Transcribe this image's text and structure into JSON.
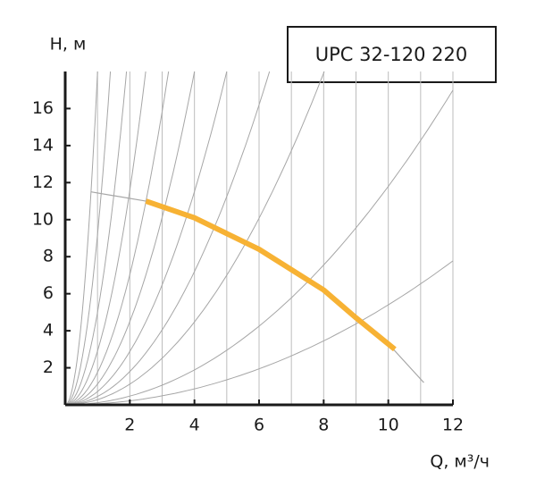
{
  "chart_data": {
    "type": "line",
    "title": "UPC 32-120 220",
    "ylabel": "H, м",
    "xlabel": "Q, м³/ч",
    "xlim": [
      0,
      12
    ],
    "ylim": [
      0,
      18
    ],
    "xticks": [
      2,
      4,
      6,
      8,
      10,
      12
    ],
    "yticks": [
      2,
      4,
      6,
      8,
      10,
      12,
      14,
      16
    ],
    "xgrid": [
      1,
      2,
      3,
      4,
      5,
      6,
      7,
      8,
      9,
      10,
      11,
      12
    ],
    "system_curves": [
      18,
      9.2,
      5,
      2.9,
      1.76,
      1.125,
      0.72,
      0.45,
      0.28,
      0.118,
      0.054
    ],
    "series": [
      {
        "color": "#a6a6a6",
        "x": [
          0.8,
          2.5,
          4,
          6,
          8,
          10,
          11.1
        ],
        "values": [
          11.5,
          11.0,
          10.1,
          8.4,
          6.2,
          3.3,
          1.2
        ]
      },
      {
        "color": "#f7b234",
        "x": [
          2.5,
          4,
          6,
          8,
          9,
          10.2
        ],
        "values": [
          11.0,
          10.1,
          8.4,
          6.2,
          4.7,
          3.0
        ]
      }
    ]
  }
}
